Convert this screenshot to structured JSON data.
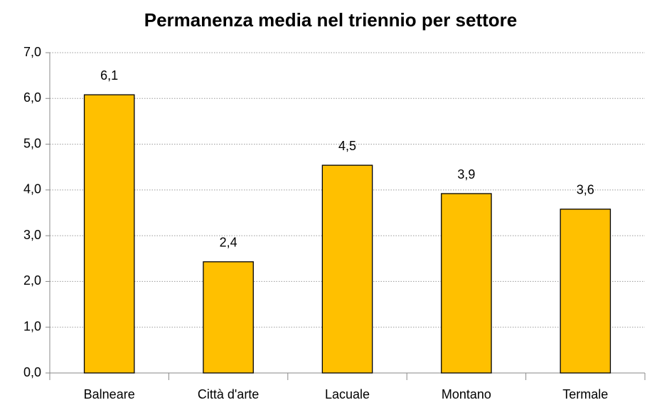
{
  "chart_data": {
    "type": "bar",
    "title": "Permanenza media nel triennio per settore",
    "categories": [
      "Balneare",
      "Città d'arte",
      "Lacuale",
      "Montano",
      "Termale"
    ],
    "values": [
      6.08,
      2.43,
      4.54,
      3.92,
      3.58
    ],
    "value_labels": [
      "6,1",
      "2,4",
      "4,5",
      "3,9",
      "3,6"
    ],
    "color": "#ffc000",
    "ylim": [
      0,
      7
    ],
    "yticks": [
      {
        "value": 0,
        "label": "0,0"
      },
      {
        "value": 1,
        "label": "1,0"
      },
      {
        "value": 2,
        "label": "2,0"
      },
      {
        "value": 3,
        "label": "3,0"
      },
      {
        "value": 4,
        "label": "4,0"
      },
      {
        "value": 5,
        "label": "5,0"
      },
      {
        "value": 6,
        "label": "6,0"
      },
      {
        "value": 7,
        "label": "7,0"
      }
    ],
    "grid": true
  }
}
